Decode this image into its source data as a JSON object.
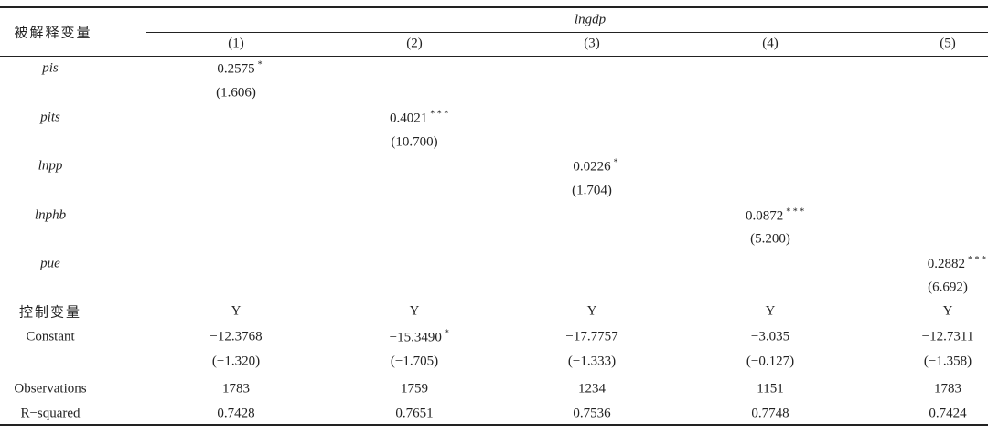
{
  "header": {
    "dep_label": "被解释变量",
    "dep_var": "lngdp",
    "columns": [
      "(1)",
      "(2)",
      "(3)",
      "(4)",
      "(5)"
    ]
  },
  "rows": [
    {
      "label": "pis",
      "italic": true,
      "cells": [
        {
          "value": "0.2575",
          "stars": "*"
        },
        null,
        null,
        null,
        null
      ]
    },
    {
      "label": null,
      "cells": [
        "(1.606)",
        null,
        null,
        null,
        null
      ]
    },
    {
      "label": "pits",
      "italic": true,
      "cells": [
        null,
        {
          "value": "0.4021",
          "stars": "* * *"
        },
        null,
        null,
        null
      ]
    },
    {
      "label": null,
      "cells": [
        null,
        "(10.700)",
        null,
        null,
        null
      ]
    },
    {
      "label": "lnpp",
      "italic": true,
      "cells": [
        null,
        null,
        {
          "value": "0.0226",
          "stars": "*"
        },
        null,
        null
      ]
    },
    {
      "label": null,
      "cells": [
        null,
        null,
        "(1.704)",
        null,
        null
      ]
    },
    {
      "label": "lnphb",
      "italic": true,
      "cells": [
        null,
        null,
        null,
        {
          "value": "0.0872",
          "stars": "* * *"
        },
        null
      ]
    },
    {
      "label": null,
      "cells": [
        null,
        null,
        null,
        "(5.200)",
        null
      ]
    },
    {
      "label": "pue",
      "italic": true,
      "cells": [
        null,
        null,
        null,
        null,
        {
          "value": "0.2882",
          "stars": "* * *"
        }
      ]
    },
    {
      "label": null,
      "cells": [
        null,
        null,
        null,
        null,
        "(6.692)"
      ]
    },
    {
      "label": "控制变量",
      "cells": [
        "Y",
        "Y",
        "Y",
        "Y",
        "Y"
      ]
    },
    {
      "label": "Constant",
      "cells": [
        "−12.3768",
        {
          "value": "−15.3490",
          "stars": "*"
        },
        "−17.7757",
        "−3.035",
        "−12.7311"
      ]
    },
    {
      "label": null,
      "cells": [
        "(−1.320)",
        "(−1.705)",
        "(−1.333)",
        "(−0.127)",
        "(−1.358)"
      ]
    },
    {
      "label": "Observations",
      "cells": [
        "1783",
        "1759",
        "1234",
        "1151",
        "1783"
      ]
    },
    {
      "label": "R−squared",
      "cells": [
        "0.7428",
        "0.7651",
        "0.7536",
        "0.7748",
        "0.7424"
      ]
    }
  ]
}
